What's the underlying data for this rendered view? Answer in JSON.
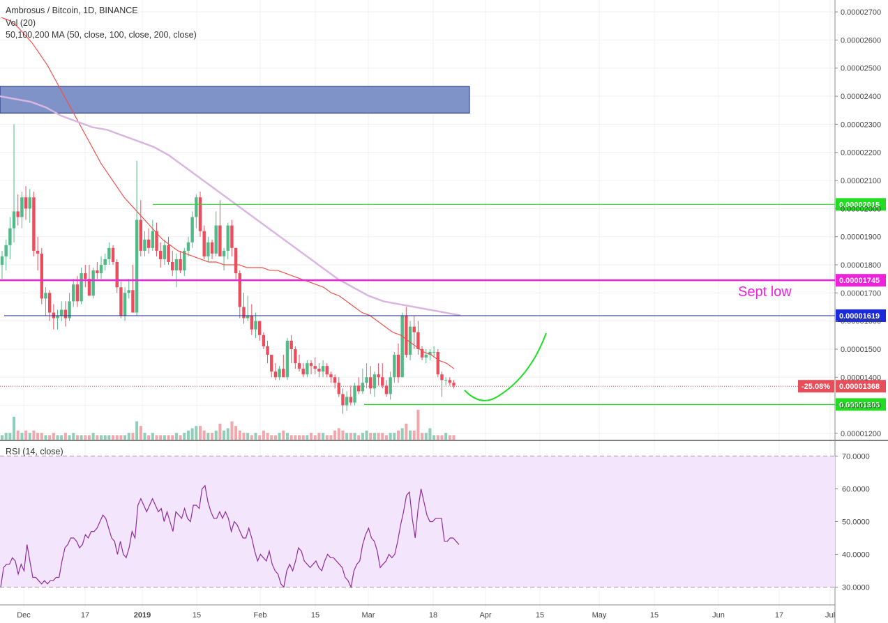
{
  "legend": {
    "title": "Ambrosus / Bitcoin, 1D, BINANCE",
    "volume": "Vol (20)",
    "ma": "50,100,200 MA (50, close, 100, close, 200, close)",
    "rsi": "RSI (14, close)"
  },
  "colors": {
    "up": "#53b987",
    "down": "#eb4d5c",
    "up_vol": "#8fcfb8",
    "down_vol": "#f2a7ac",
    "ma50": "#f0504a",
    "ma100": "#d9b5e0",
    "zone": "#7f93c8",
    "green_level": "#22dd22",
    "magenta_level": "#ee22dd",
    "navy_level": "#1a2080",
    "rsi_line": "#8e2c9e",
    "rsi_band": "#f3e5fb",
    "price_badge": "#e64f5a"
  },
  "chart_data": [
    {
      "type": "candlestick",
      "title": "Ambrosus / Bitcoin, 1D, BINANCE",
      "y_axis_ticks": [
        "0.00002700",
        "0.00002600",
        "0.00002500",
        "0.00002400",
        "0.00002300",
        "0.00002200",
        "0.00002100",
        "0.00002000",
        "0.00001900",
        "0.00001800",
        "0.00001700",
        "0.00001600",
        "0.00001500",
        "0.00001400",
        "0.00001300",
        "0.00001200"
      ],
      "ylim": [
        1.18e-05,
        2.73e-05
      ],
      "x_axis_ticks": [
        "Dec",
        "17",
        "2019",
        "15",
        "Feb",
        "15",
        "Mar",
        "18",
        "Apr",
        "15",
        "May",
        "15",
        "Jun",
        "17",
        "Jul"
      ],
      "candles": [
        [
          1.8e-05,
          1.85e-05,
          1.75e-05,
          1.83e-05
        ],
        [
          1.83e-05,
          1.89e-05,
          1.78e-05,
          1.87e-05
        ],
        [
          1.87e-05,
          1.97e-05,
          1.82e-05,
          1.93e-05
        ],
        [
          1.93e-05,
          2.3e-05,
          1.88e-05,
          1.99e-05
        ],
        [
          1.99e-05,
          2.05e-05,
          1.94e-05,
          1.97e-05
        ],
        [
          1.97e-05,
          2.06e-05,
          1.93e-05,
          2.04e-05
        ],
        [
          2.04e-05,
          2.08e-05,
          1.96e-05,
          2e-05
        ],
        [
          2e-05,
          2.07e-05,
          1.95e-05,
          2.04e-05
        ],
        [
          2.04e-05,
          2.06e-05,
          1.83e-05,
          1.85e-05
        ],
        [
          1.85e-05,
          1.9e-05,
          1.78e-05,
          1.84e-05
        ],
        [
          1.84e-05,
          1.86e-05,
          1.66e-05,
          1.68e-05
        ],
        [
          1.68e-05,
          1.72e-05,
          1.62e-05,
          1.7e-05
        ],
        [
          1.7e-05,
          1.71e-05,
          1.6e-05,
          1.63e-05
        ],
        [
          1.63e-05,
          1.66e-05,
          1.57e-05,
          1.61e-05
        ],
        [
          1.61e-05,
          1.64e-05,
          1.57e-05,
          1.62e-05
        ],
        [
          1.62e-05,
          1.67e-05,
          1.6e-05,
          1.64e-05
        ],
        [
          1.64e-05,
          1.67e-05,
          1.58e-05,
          1.61e-05
        ],
        [
          1.61e-05,
          1.7e-05,
          1.6e-05,
          1.67e-05
        ],
        [
          1.67e-05,
          1.75e-05,
          1.65e-05,
          1.73e-05
        ],
        [
          1.73e-05,
          1.76e-05,
          1.65e-05,
          1.67e-05
        ],
        [
          1.67e-05,
          1.79e-05,
          1.66e-05,
          1.77e-05
        ],
        [
          1.77e-05,
          1.8e-05,
          1.72e-05,
          1.75e-05
        ],
        [
          1.75e-05,
          1.8e-05,
          1.69e-05,
          1.69e-05
        ],
        [
          1.69e-05,
          1.79e-05,
          1.68e-05,
          1.78e-05
        ],
        [
          1.78e-05,
          1.81e-05,
          1.75e-05,
          1.77e-05
        ],
        [
          1.77e-05,
          1.83e-05,
          1.75e-05,
          1.8e-05
        ],
        [
          1.8e-05,
          1.84e-05,
          1.78e-05,
          1.82e-05
        ],
        [
          1.82e-05,
          1.88e-05,
          1.8e-05,
          1.86e-05
        ],
        [
          1.86e-05,
          1.87e-05,
          1.8e-05,
          1.81e-05
        ],
        [
          1.81e-05,
          1.82e-05,
          1.7e-05,
          1.72e-05
        ],
        [
          1.72e-05,
          1.74e-05,
          1.61e-05,
          1.62e-05
        ],
        [
          1.62e-05,
          1.72e-05,
          1.6e-05,
          1.7e-05
        ],
        [
          1.7e-05,
          1.75e-05,
          1.68e-05,
          1.71e-05
        ],
        [
          1.71e-05,
          1.8e-05,
          1.64e-05,
          1.63e-05
        ],
        [
          1.63e-05,
          2.17e-05,
          1.62e-05,
          1.96e-05
        ],
        [
          1.96e-05,
          2.03e-05,
          1.83e-05,
          1.85e-05
        ],
        [
          1.85e-05,
          1.92e-05,
          1.83e-05,
          1.89e-05
        ],
        [
          1.89e-05,
          1.93e-05,
          1.84e-05,
          1.86e-05
        ],
        [
          1.86e-05,
          1.96e-05,
          1.85e-05,
          1.92e-05
        ],
        [
          1.92e-05,
          1.95e-05,
          1.83e-05,
          1.85e-05
        ],
        [
          1.85e-05,
          1.88e-05,
          1.79e-05,
          1.82e-05
        ],
        [
          1.82e-05,
          1.89e-05,
          1.8e-05,
          1.87e-05
        ],
        [
          1.87e-05,
          1.9e-05,
          1.8e-05,
          1.81e-05
        ],
        [
          1.81e-05,
          1.85e-05,
          1.76e-05,
          1.78e-05
        ],
        [
          1.78e-05,
          1.84e-05,
          1.72e-05,
          1.82e-05
        ],
        [
          1.82e-05,
          1.85e-05,
          1.77e-05,
          1.78e-05
        ],
        [
          1.78e-05,
          1.86e-05,
          1.76e-05,
          1.85e-05
        ],
        [
          1.85e-05,
          1.9e-05,
          1.83e-05,
          1.88e-05
        ],
        [
          1.88e-05,
          1.99e-05,
          1.86e-05,
          1.97e-05
        ],
        [
          1.97e-05,
          2.05e-05,
          1.93e-05,
          2.04e-05
        ],
        [
          2.04e-05,
          2.06e-05,
          1.9e-05,
          1.92e-05
        ],
        [
          1.92e-05,
          1.94e-05,
          1.82e-05,
          1.83e-05
        ],
        [
          1.83e-05,
          1.9e-05,
          1.81e-05,
          1.88e-05
        ],
        [
          1.88e-05,
          1.89e-05,
          1.82e-05,
          1.84e-05
        ],
        [
          1.84e-05,
          1.99e-05,
          1.83e-05,
          1.94e-05
        ],
        [
          1.94e-05,
          2.03e-05,
          1.83e-05,
          1.83e-05
        ],
        [
          1.83e-05,
          1.86e-05,
          1.78e-05,
          1.85e-05
        ],
        [
          1.85e-05,
          1.95e-05,
          1.82e-05,
          1.94e-05
        ],
        [
          1.94e-05,
          1.96e-05,
          1.83e-05,
          1.86e-05
        ],
        [
          1.86e-05,
          1.86e-05,
          1.75e-05,
          1.77e-05
        ],
        [
          1.77e-05,
          1.78e-05,
          1.61e-05,
          1.65e-05
        ],
        [
          1.65e-05,
          1.7e-05,
          1.59e-05,
          1.61e-05
        ],
        [
          1.61e-05,
          1.69e-05,
          1.6e-05,
          1.62e-05
        ],
        [
          1.62e-05,
          1.66e-05,
          1.55e-05,
          1.57e-05
        ],
        [
          1.57e-05,
          1.63e-05,
          1.54e-05,
          1.6e-05
        ],
        [
          1.6e-05,
          1.6e-05,
          1.53e-05,
          1.55e-05
        ],
        [
          1.55e-05,
          1.56e-05,
          1.5e-05,
          1.51e-05
        ],
        [
          1.51e-05,
          1.53e-05,
          1.45e-05,
          1.48e-05
        ],
        [
          1.48e-05,
          1.48e-05,
          1.4e-05,
          1.42e-05
        ],
        [
          1.42e-05,
          1.45e-05,
          1.39e-05,
          1.4e-05
        ],
        [
          1.4e-05,
          1.44e-05,
          1.39e-05,
          1.43e-05
        ],
        [
          1.43e-05,
          1.48e-05,
          1.41e-05,
          1.4e-05
        ],
        [
          1.4e-05,
          1.54e-05,
          1.39e-05,
          1.53e-05
        ],
        [
          1.53e-05,
          1.55e-05,
          1.45e-05,
          1.5e-05
        ],
        [
          1.5e-05,
          1.51e-05,
          1.43e-05,
          1.45e-05
        ],
        [
          1.45e-05,
          1.48e-05,
          1.42e-05,
          1.43e-05
        ],
        [
          1.43e-05,
          1.45e-05,
          1.4e-05,
          1.41e-05
        ],
        [
          1.41e-05,
          1.46e-05,
          1.4e-05,
          1.45e-05
        ],
        [
          1.45e-05,
          1.46e-05,
          1.41e-05,
          1.44e-05
        ],
        [
          1.44e-05,
          1.47e-05,
          1.41e-05,
          1.43e-05
        ],
        [
          1.43e-05,
          1.45e-05,
          1.4e-05,
          1.42e-05
        ],
        [
          1.42e-05,
          1.46e-05,
          1.4e-05,
          1.44e-05
        ],
        [
          1.44e-05,
          1.45e-05,
          1.4e-05,
          1.41e-05
        ],
        [
          1.41e-05,
          1.42e-05,
          1.38e-05,
          1.4e-05
        ],
        [
          1.4e-05,
          1.41e-05,
          1.36e-05,
          1.38e-05
        ],
        [
          1.38e-05,
          1.4e-05,
          1.33e-05,
          1.34e-05
        ],
        [
          1.34e-05,
          1.36e-05,
          1.27e-05,
          1.3e-05
        ],
        [
          1.3e-05,
          1.35e-05,
          1.28e-05,
          1.33e-05
        ],
        [
          1.33e-05,
          1.37e-05,
          1.3e-05,
          1.31e-05
        ],
        [
          1.31e-05,
          1.38e-05,
          1.3e-05,
          1.37e-05
        ],
        [
          1.37e-05,
          1.4e-05,
          1.34e-05,
          1.35e-05
        ],
        [
          1.35e-05,
          1.43e-05,
          1.34e-05,
          1.38e-05
        ],
        [
          1.38e-05,
          1.45e-05,
          1.36e-05,
          1.4e-05
        ],
        [
          1.4e-05,
          1.44e-05,
          1.34e-05,
          1.36e-05
        ],
        [
          1.36e-05,
          1.42e-05,
          1.33e-05,
          1.41e-05
        ],
        [
          1.41e-05,
          1.45e-05,
          1.37e-05,
          1.4e-05
        ],
        [
          1.4e-05,
          1.45e-05,
          1.36e-05,
          1.37e-05
        ],
        [
          1.37e-05,
          1.39e-05,
          1.33e-05,
          1.34e-05
        ],
        [
          1.34e-05,
          1.42e-05,
          1.32e-05,
          1.4e-05
        ],
        [
          1.4e-05,
          1.49e-05,
          1.38e-05,
          1.48e-05
        ],
        [
          1.48e-05,
          1.52e-05,
          1.38e-05,
          1.4e-05
        ],
        [
          1.4e-05,
          1.63e-05,
          1.4e-05,
          1.62e-05
        ],
        [
          1.62e-05,
          1.65e-05,
          1.47e-05,
          1.48e-05
        ],
        [
          1.48e-05,
          1.6e-05,
          1.46e-05,
          1.58e-05
        ],
        [
          1.58e-05,
          1.62e-05,
          1.5e-05,
          1.56e-05
        ],
        [
          1.56e-05,
          1.6e-05,
          1.48e-05,
          1.5e-05
        ],
        [
          1.5e-05,
          1.51e-05,
          1.46e-05,
          1.47e-05
        ],
        [
          1.47e-05,
          1.5e-05,
          1.45e-05,
          1.48e-05
        ],
        [
          1.48e-05,
          1.5e-05,
          1.46e-05,
          1.49e-05
        ],
        [
          1.49e-05,
          1.51e-05,
          1.47e-05,
          1.49e-05
        ],
        [
          1.49e-05,
          1.5e-05,
          1.4e-05,
          1.41e-05
        ],
        [
          1.41e-05,
          1.42e-05,
          1.33e-05,
          1.39e-05
        ],
        [
          1.39e-05,
          1.4e-05,
          1.37e-05,
          1.39e-05
        ],
        [
          1.39e-05,
          1.4e-05,
          1.37e-05,
          1.38e-05
        ],
        [
          1.38e-05,
          1.39e-05,
          1.36e-05,
          1.37e-05
        ]
      ],
      "volumes": [
        2,
        3,
        3,
        10,
        4,
        3,
        4,
        3,
        4,
        3,
        3,
        2,
        2,
        3,
        2,
        2,
        3,
        2,
        3,
        2,
        2,
        2,
        2,
        3,
        2,
        2,
        2,
        2,
        2,
        2,
        2,
        2,
        3,
        3,
        8,
        6,
        3,
        2,
        3,
        2,
        2,
        2,
        2,
        2,
        3,
        2,
        3,
        4,
        5,
        6,
        6,
        4,
        3,
        3,
        4,
        7,
        4,
        5,
        8,
        6,
        4,
        3,
        3,
        2,
        3,
        2,
        4,
        3,
        2,
        2,
        3,
        4,
        3,
        2,
        2,
        2,
        2,
        2,
        3,
        2,
        3,
        3,
        2,
        2,
        4,
        5,
        4,
        3,
        3,
        3,
        2,
        3,
        4,
        3,
        3,
        3,
        3,
        2,
        3,
        3,
        4,
        5,
        7,
        4,
        4,
        13,
        3,
        3,
        5,
        2,
        2,
        2,
        3,
        2,
        2
      ],
      "ma_series": [
        {
          "name": "50 MA",
          "values": [
            2.68e-05,
            2.67e-05,
            2.65e-05,
            2.62e-05,
            2.59e-05,
            2.55e-05,
            2.51e-05,
            2.46e-05,
            2.41e-05,
            2.36e-05,
            2.31e-05,
            2.26e-05,
            2.21e-05,
            2.16e-05,
            2.12e-05,
            2.08e-05,
            2.04e-05,
            2.01e-05,
            1.98e-05,
            1.95e-05,
            1.92e-05,
            1.89e-05,
            1.87e-05,
            1.85e-05,
            1.84e-05,
            1.83e-05,
            1.82e-05,
            1.81e-05,
            1.81e-05,
            1.8e-05,
            1.8e-05,
            1.8e-05,
            1.79e-05,
            1.79e-05,
            1.79e-05,
            1.78e-05,
            1.78e-05,
            1.77e-05,
            1.76e-05,
            1.75e-05,
            1.74e-05,
            1.73e-05,
            1.72e-05,
            1.7e-05,
            1.69e-05,
            1.67e-05,
            1.65e-05,
            1.63e-05,
            1.62e-05,
            1.6e-05,
            1.58e-05,
            1.56e-05,
            1.55e-05,
            1.53e-05,
            1.51e-05,
            1.49e-05,
            1.48e-05,
            1.46e-05,
            1.45e-05,
            1.43e-05
          ]
        },
        {
          "name": "200 MA",
          "values": [
            2.4e-05,
            2.39e-05,
            2.38e-05,
            2.36e-05,
            2.33e-05,
            2.31e-05,
            2.29e-05,
            2.28e-05,
            2.26e-05,
            2.24e-05,
            2.22e-05,
            2.19e-05,
            2.15e-05,
            2.11e-05,
            2.07e-05,
            2.03e-05,
            1.99e-05,
            1.95e-05,
            1.91e-05,
            1.87e-05,
            1.83e-05,
            1.79e-05,
            1.75e-05,
            1.72e-05,
            1.69e-05,
            1.67e-05,
            1.66e-05,
            1.65e-05,
            1.64e-05,
            1.63e-05,
            1.62e-05
          ]
        }
      ]
    },
    {
      "type": "line",
      "title": "RSI (14, close)",
      "y_axis_ticks": [
        "70.0000",
        "60.0000",
        "50.0000",
        "40.0000",
        "30.0000"
      ],
      "ylim": [
        28,
        72
      ],
      "values": [
        30,
        36,
        37,
        37,
        39,
        38,
        34,
        37,
        35,
        43,
        38,
        33,
        33,
        32,
        31,
        32,
        31,
        32,
        32,
        33,
        33,
        38,
        42,
        43,
        45,
        45,
        44,
        42,
        43,
        46,
        45,
        47,
        47,
        48,
        50,
        52,
        51,
        48,
        45,
        44,
        40,
        44,
        40,
        39,
        42,
        47,
        45,
        55,
        57,
        55,
        53,
        55,
        57,
        55,
        53,
        54,
        50,
        53,
        50,
        47,
        53,
        52,
        51,
        54,
        51,
        50,
        55,
        55,
        54,
        60,
        61,
        56,
        53,
        51,
        51,
        53,
        51,
        53,
        51,
        47,
        50,
        49,
        47,
        45,
        45,
        48,
        45,
        41,
        38,
        40,
        39,
        38,
        41,
        37,
        35,
        34,
        31,
        30,
        35,
        37,
        35,
        38,
        42,
        41,
        38,
        37,
        36,
        37,
        38,
        36,
        35,
        38,
        40,
        39,
        39,
        38,
        37,
        36,
        33,
        32,
        30,
        35,
        37,
        38,
        43,
        46,
        48,
        45,
        44,
        41,
        36,
        37,
        38,
        40,
        39,
        40,
        44,
        49,
        53,
        58,
        59,
        51,
        45,
        54,
        60,
        56,
        52,
        50,
        50,
        51,
        51,
        51,
        44,
        44,
        45,
        45,
        44,
        43
      ],
      "levels": [
        70,
        30
      ]
    }
  ],
  "levels": {
    "resistance_2015": "0.00002015",
    "sept_low": "0.00001745",
    "navy": "0.00001619",
    "current_price": "0.00001368",
    "current_change": "-25.08%",
    "support_1303": "0.00001303"
  },
  "annotations": {
    "sept_low_label": "Sept low"
  }
}
